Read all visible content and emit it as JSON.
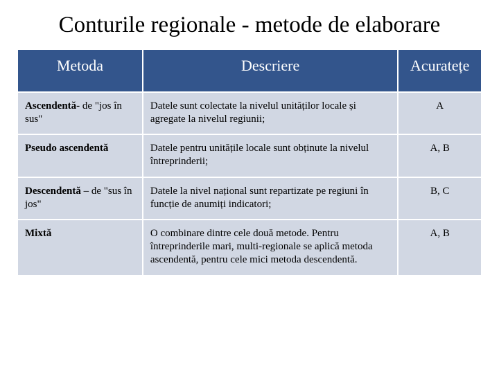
{
  "slide": {
    "title": "Conturile regionale - metode de elaborare",
    "title_fontsize": 33,
    "title_color": "#000000",
    "background_color": "#ffffff"
  },
  "table": {
    "type": "table",
    "header_bg": "#33558c",
    "header_fg": "#ffffff",
    "header_fontsize": 22,
    "cell_bg": "#d1d7e3",
    "cell_fg": "#000000",
    "cell_fontsize": 15,
    "border_color": "#ffffff",
    "column_widths_pct": [
      27,
      55,
      18
    ],
    "columns": [
      "Metoda",
      "Descriere",
      "Acuratețe"
    ],
    "rows": [
      {
        "method_bold": "Ascendentă",
        "method_rest": "- de \"jos în sus\"",
        "description": "Datele sunt colectate la nivelul unităților locale și agregate la nivelul regiunii;",
        "accuracy": "A"
      },
      {
        "method_bold": "Pseudo ascendentă",
        "method_rest": "",
        "description": "Datele pentru unitățile locale sunt obținute la nivelul întreprinderii;",
        "accuracy": "A, B"
      },
      {
        "method_bold": "Descendentă",
        "method_rest": " – de \"sus în jos\"",
        "description": "Datele la nivel național sunt repartizate pe regiuni în funcție de anumiți indicatori;",
        "accuracy": "B, C"
      },
      {
        "method_bold": "Mixtă",
        "method_rest": "",
        "description": "O combinare dintre cele două metode. Pentru întreprinderile mari, multi-regionale se aplică metoda ascendentă, pentru cele mici metoda descendentă.",
        "accuracy": "A, B"
      }
    ]
  }
}
